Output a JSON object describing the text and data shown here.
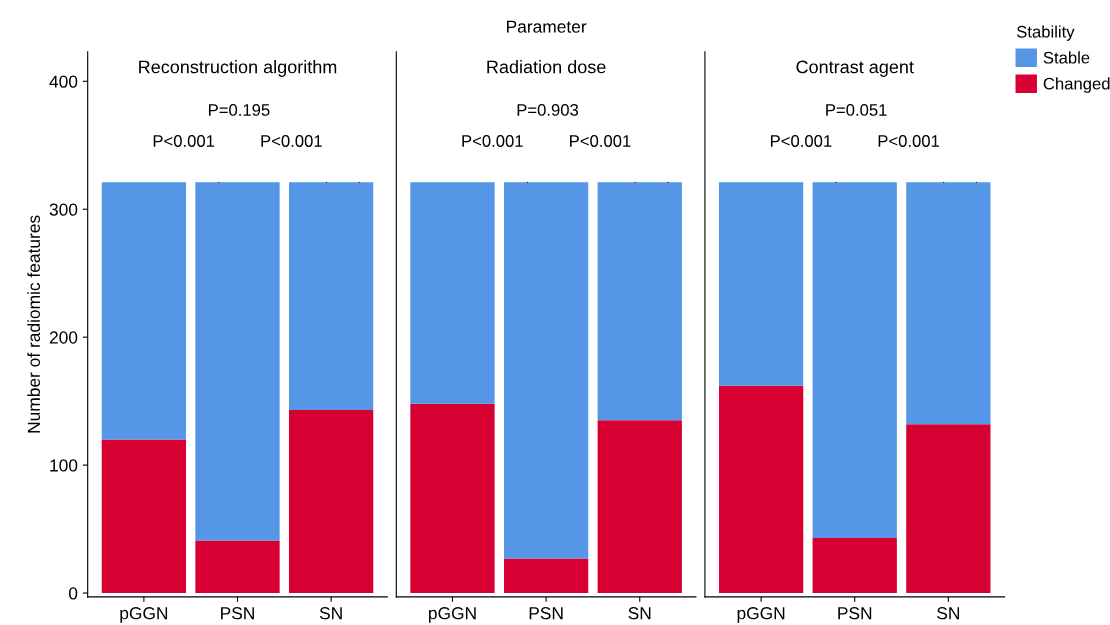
{
  "chart_data": [
    {
      "type": "bar",
      "title": "Reconstruction algorithm",
      "ylabel": "Number of radiomic features",
      "categories": [
        "pGGN",
        "PSN",
        "SN"
      ],
      "stacked": true,
      "ylim": [
        -3,
        423
      ],
      "yticks": [
        0,
        100,
        200,
        300,
        400
      ],
      "grid": false,
      "legend": false,
      "annotations": [
        "Parameter",
        "P<0.001",
        "P<0.001",
        "P=0.195"
      ],
      "series": [
        {
          "color": "#d70032",
          "values": [
            120,
            41,
            143
          ]
        },
        {
          "color": "#5596e6",
          "values": [
            201,
            280,
            178
          ]
        }
      ]
    },
    {
      "type": "bar",
      "title": "Radiation dose",
      "categories": [
        "pGGN",
        "PSN",
        "SN"
      ],
      "stacked": true,
      "ylim": [
        -3,
        423
      ],
      "tick_labels": "x",
      "grid": false,
      "legend": false,
      "annotations": [
        "P<0.001",
        "P<0.001",
        "P=0.903"
      ],
      "series": [
        {
          "color": "#d70032",
          "values": [
            148,
            27,
            135
          ]
        },
        {
          "color": "#5596e6",
          "values": [
            173,
            294,
            186
          ]
        }
      ]
    },
    {
      "type": "bar",
      "title": "Contrast agent",
      "categories": [
        "pGGN",
        "PSN",
        "SN"
      ],
      "stacked": true,
      "ylim": [
        -3,
        423
      ],
      "tick_labels": "x",
      "grid": false,
      "legend": "top right",
      "legend_title": "Stability",
      "annotations": [
        "P<0.001",
        "P<0.001",
        "P=0.051"
      ],
      "series": [
        {
          "name": "Changed",
          "color": "#d70032",
          "values": [
            162,
            43,
            132
          ]
        },
        {
          "name": "Stable",
          "color": "#5596e6",
          "values": [
            159,
            278,
            189
          ]
        }
      ]
    }
  ]
}
